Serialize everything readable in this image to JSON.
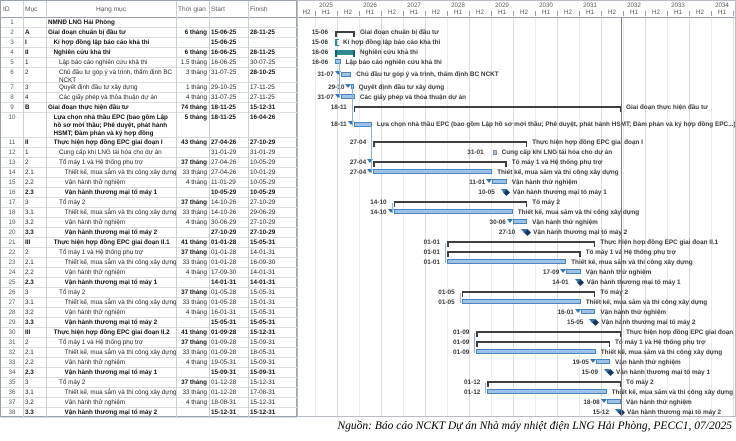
{
  "table": {
    "headers": {
      "id": "ID",
      "muc": "Mục",
      "hang_muc": "Hạng mục",
      "thoi_gian": "Thời gian",
      "start": "Start",
      "finish": "Finish"
    }
  },
  "footer": {
    "source": "Nguồn: Báo cáo NCKT Dự án Nhà máy nhiệt điện LNG Hải Phòng, PECC1, 07/2025"
  },
  "chart_data": {
    "type": "table",
    "subtype": "gantt",
    "timeline": {
      "leading_half_label": "H2",
      "years": [
        2025,
        2026,
        2027,
        2028,
        2029,
        2030,
        2031,
        2032,
        2033,
        2034
      ],
      "half1_label": "H1",
      "half2_label": "H2",
      "finish_line_date": "15-12-31"
    },
    "rows": [
      {
        "id": 1,
        "muc": "",
        "name": "NMNĐ LNG Hải Phòng",
        "level": 0,
        "bold": true,
        "dur": "",
        "start": "",
        "finish": ""
      },
      {
        "id": 2,
        "muc": "A",
        "name": "Giai đoạn chuẩn bị đầu tư",
        "level": 0,
        "bold": true,
        "dur": "6 tháng",
        "start": "15-06-25",
        "finish": "28-11-25",
        "bar": {
          "type": "summary",
          "from": "15-06-25",
          "to": "28-11-25",
          "d": "15-06",
          "label": "Giai đoạn chuẩn bị đầu tư"
        }
      },
      {
        "id": 3,
        "muc": "I",
        "name": "Kí hợp đồng lập báo cáo khả thi",
        "level": 1,
        "bold": true,
        "dur": "",
        "start": "15-06-25",
        "finish": "",
        "bar": {
          "type": "open",
          "from": "15-06-25",
          "d": "15-06",
          "label": "Kí hợp đồng lập báo cáo khả thi"
        }
      },
      {
        "id": 4,
        "muc": "II",
        "name": "Nghiên cứu khả thi",
        "level": 1,
        "bold": true,
        "dur": "6 tháng",
        "start": "16-06-25",
        "finish": "28-11-25",
        "bar": {
          "type": "teal",
          "from": "16-06-25",
          "to": "28-11-25",
          "d": "16-06",
          "label": "Nghiên cứu khả thi"
        }
      },
      {
        "id": 5,
        "muc": "1",
        "name": "Lập báo cáo nghiên cứu khả thi",
        "level": 2,
        "dur": "1.5 tháng",
        "start": "16-06-25",
        "finish": "30-07-25",
        "bar": {
          "type": "task",
          "from": "16-06-25",
          "to": "30-07-25",
          "d": "16-06",
          "label": "Lập báo cáo nghiên cứu khả thi"
        }
      },
      {
        "id": 6,
        "muc": "2",
        "name": "Chủ đầu tư góp ý và trình, thẩm định BC  NCKT",
        "level": 2,
        "lines": 2,
        "dur": "3 tháng",
        "start": "31-07-25",
        "finish": "28-10-25",
        "bold_cells": [
          "finish"
        ],
        "bar": {
          "type": "task",
          "link": true,
          "from": "31-07-25",
          "to": "28-10-25",
          "d": "31-07",
          "label": "Chủ đầu tư góp ý và trình, thẩm định BC  NCKT"
        }
      },
      {
        "id": 7,
        "muc": "3",
        "name": "Quyết định đầu tư xây dựng",
        "level": 2,
        "dur": "1 tháng",
        "start": "29-10-25",
        "finish": "17-11-25",
        "bar": {
          "type": "task",
          "link": true,
          "from": "29-10-25",
          "to": "17-11-25",
          "d": "29-10",
          "label": "Quyết định đầu tư xây dựng"
        }
      },
      {
        "id": 8,
        "muc": "4",
        "name": "Các giấy phép và thỏa thuận dự án",
        "level": 2,
        "dur": "4 tháng",
        "start": "31-07-25",
        "finish": "27-11-25",
        "bar": {
          "type": "task",
          "link": true,
          "from": "31-07-25",
          "to": "27-11-25",
          "d": "31-07",
          "label": "Các giấy phép và thỏa thuận dự án"
        }
      },
      {
        "id": 9,
        "muc": "B",
        "name": "Giai đoạn thực hiện đầu tư",
        "level": 0,
        "bold": true,
        "dur": "74 tháng",
        "start": "18-11-25",
        "finish": "15-12-31",
        "bar": {
          "type": "summary",
          "from": "18-11-25",
          "to": "15-12-31",
          "d": "18-11",
          "label": "Giai đoạn thực hiện đầu tư"
        }
      },
      {
        "id": 10,
        "muc": "",
        "name": "Lựa chọn nhà thầu EPC (bao gồm Lập hồ sơ mời thầu; Phê duyệt, phát hành HSMT; Đàm phán và ký hợp đồng",
        "level": 1,
        "lines": 3,
        "bold": true,
        "dur": "5 tháng",
        "start": "18-11-25",
        "finish": "16-04-26",
        "bar": {
          "type": "task",
          "link": true,
          "from": "18-11-25",
          "to": "16-04-26",
          "d": "18-11",
          "label": "Lựa chọn nhà thầu EPC (bao gồm Lập hồ sơ mời thầu; Phê duyệt, phát hành HSMT; Đàm phán và ký hợp đồng EPC...)"
        }
      },
      {
        "id": 11,
        "muc": "II",
        "name": "Thực hiện hợp đồng EPC giai đoạn I",
        "level": 1,
        "bold": true,
        "dur": "43 tháng",
        "start": "27-04-26",
        "finish": "27-10-29",
        "bar": {
          "type": "summary",
          "from": "27-04-26",
          "to": "27-10-29",
          "d": "27-04",
          "label": "Thực hiện hợp đồng EPC giai đoạn I"
        }
      },
      {
        "id": 12,
        "muc": "1",
        "name": "Cung cấp khí LNG tái hóa cho dự án",
        "level": 2,
        "dur": "",
        "start": "31-01-29",
        "finish": "31-01-29",
        "bar": {
          "type": "mini",
          "from": "31-01-29",
          "d": "31-01",
          "label": "Cung cấp khí LNG tái hóa cho dự án"
        }
      },
      {
        "id": 13,
        "muc": "2",
        "name": "Tổ máy 1 và Hệ thống phụ trợ",
        "level": 2,
        "dur": "37 tháng",
        "start": "27-04-26",
        "finish": "10-05-29",
        "bold_cells": [
          "dur"
        ],
        "bar": {
          "type": "summary",
          "link": true,
          "from": "27-04-26",
          "to": "10-05-29",
          "d": "27-04",
          "label": "Tổ máy 1 và Hệ thống phụ trợ"
        }
      },
      {
        "id": 14,
        "muc": "2.1",
        "name": "Thiết kế, mua sắm và thi công xây dựng",
        "level": 3,
        "dur": "33 tháng",
        "start": "27-04-26",
        "finish": "10-01-29",
        "bar": {
          "type": "task",
          "link": true,
          "from": "27-04-26",
          "to": "10-01-29",
          "d": "27-04",
          "label": "Thiết kế, mua sắm và thi công xây dựng"
        }
      },
      {
        "id": 15,
        "muc": "2.2",
        "name": "Vận hành thử nghiệm",
        "level": 3,
        "dur": "4 tháng",
        "start": "11-01-29",
        "finish": "10-05-29",
        "bar": {
          "type": "task",
          "link": true,
          "from": "11-01-29",
          "to": "10-05-29",
          "d": "11-01",
          "label": "Vận hành thử nghiệm"
        }
      },
      {
        "id": 16,
        "muc": "2.3",
        "name": "Vận hành thương mại tổ máy 1",
        "level": 3,
        "bold": true,
        "dur": "",
        "start": "10-05-29",
        "finish": "10-05-29",
        "bar": {
          "type": "milestone",
          "link": true,
          "from": "10-05-29",
          "d": "10-05",
          "label": "Vận hành thương mại tổ máy 1"
        }
      },
      {
        "id": 17,
        "muc": "3",
        "name": "Tổ máy 2",
        "level": 2,
        "dur": "37 tháng",
        "start": "14-10-26",
        "finish": "27-10-29",
        "bold_cells": [
          "dur"
        ],
        "bar": {
          "type": "summary",
          "from": "14-10-26",
          "to": "27-10-29",
          "d": "14-10",
          "label": "Tổ máy 2"
        }
      },
      {
        "id": 18,
        "muc": "3.1",
        "name": "Thiết kế, mua sắm và thi công xây dựng",
        "level": 3,
        "dur": "33 tháng",
        "start": "14-10-26",
        "finish": "29-06-29",
        "bar": {
          "type": "task",
          "link": true,
          "from": "14-10-26",
          "to": "29-06-29",
          "d": "14-10",
          "label": "Thiết kế, mua sắm và thi công xây dựng"
        }
      },
      {
        "id": 19,
        "muc": "3.2",
        "name": "Vận hành thử nghiệm",
        "level": 3,
        "dur": "4 tháng",
        "start": "30-06-29",
        "finish": "27-10-29",
        "bar": {
          "type": "task",
          "link": true,
          "from": "30-06-29",
          "to": "27-10-29",
          "d": "30-06",
          "label": "Vận hành thử nghiệm"
        }
      },
      {
        "id": 20,
        "muc": "3.3",
        "name": "Vận hành thương mại tổ máy 2",
        "level": 3,
        "bold": true,
        "dur": "",
        "start": "27-10-29",
        "finish": "27-10-29",
        "bar": {
          "type": "milestone",
          "link": true,
          "from": "27-10-29",
          "d": "27-10",
          "label": "Vận hành thương mại tổ máy 2"
        }
      },
      {
        "id": 21,
        "muc": "III",
        "name": "Thực hiện hợp đồng EPC giai đoạn II.1",
        "level": 1,
        "bold": true,
        "dur": "41 tháng",
        "start": "01-01-28",
        "finish": "15-05-31",
        "bar": {
          "type": "summary",
          "from": "01-01-28",
          "to": "15-05-31",
          "d": "01-01",
          "label": "Thực hiện hợp đồng EPC giai đoạn II.1"
        }
      },
      {
        "id": 22,
        "muc": "2",
        "name": "Tổ máy 1 và Hệ thống phụ trợ",
        "level": 2,
        "dur": "37 tháng",
        "start": "01-01-28",
        "finish": "14-01-31",
        "bold_cells": [
          "dur"
        ],
        "bar": {
          "type": "summary",
          "from": "01-01-28",
          "to": "14-01-31",
          "d": "01-01",
          "label": "Tổ máy 1 và Hệ thống phụ trợ"
        }
      },
      {
        "id": 23,
        "muc": "2.1",
        "name": "Thiết kế, mua sắm và thi công xây dựng",
        "level": 3,
        "dur": "33 tháng",
        "start": "01-01-28",
        "finish": "16-09-30",
        "bar": {
          "type": "task",
          "from": "01-01-28",
          "to": "16-09-30",
          "d": "01-01",
          "label": "Thiết kế, mua sắm và thi công xây dựng"
        }
      },
      {
        "id": 24,
        "muc": "2.2",
        "name": "Vận hành thử nghiệm",
        "level": 3,
        "dur": "4 tháng",
        "start": "17-09-30",
        "finish": "14-01-31",
        "bar": {
          "type": "task",
          "link": true,
          "from": "17-09-30",
          "to": "14-01-31",
          "d": "17-09",
          "label": "Vận hành thử nghiệm"
        }
      },
      {
        "id": 25,
        "muc": "2.3",
        "name": "Vận hành thương mại tổ máy 1",
        "level": 3,
        "bold": true,
        "dur": "",
        "start": "14-01-31",
        "finish": "14-01-31",
        "bar": {
          "type": "milestone",
          "link": true,
          "from": "14-01-31",
          "d": "14-01",
          "label": "Vận hành thương mại tổ máy 1"
        }
      },
      {
        "id": 26,
        "muc": "3",
        "name": "Tổ máy 2",
        "level": 2,
        "dur": "37 tháng",
        "start": "01-05-28",
        "finish": "15-05-31",
        "bold_cells": [
          "dur"
        ],
        "bar": {
          "type": "summary",
          "from": "01-05-28",
          "to": "15-05-31",
          "d": "01-05",
          "label": "Tổ máy 2"
        }
      },
      {
        "id": 27,
        "muc": "3.1",
        "name": "Thiết kế, mua sắm và thi công xây dựng",
        "level": 3,
        "dur": "33 tháng",
        "start": "01-05-28",
        "finish": "15-01-31",
        "bar": {
          "type": "task",
          "from": "01-05-28",
          "to": "15-01-31",
          "d": "01-05",
          "label": "Thiết kế, mua sắm và thi công xây dựng"
        }
      },
      {
        "id": 28,
        "muc": "3.2",
        "name": "Vận hành thử nghiệm",
        "level": 3,
        "dur": "4 tháng",
        "start": "16-01-31",
        "finish": "15-05-31",
        "bar": {
          "type": "task",
          "link": true,
          "from": "16-01-31",
          "to": "15-05-31",
          "d": "16-01",
          "label": "Vận hành thử nghiệm"
        }
      },
      {
        "id": 29,
        "muc": "3.3",
        "name": "Vận hành thương mại tổ máy 2",
        "level": 3,
        "bold": true,
        "dur": "",
        "start": "15-05-31",
        "finish": "15-05-31",
        "bar": {
          "type": "milestone",
          "link": true,
          "from": "15-05-31",
          "d": "15-05",
          "label": "Vận hành thương mại tổ máy 2"
        }
      },
      {
        "id": 30,
        "muc": "III",
        "name": "Thực hiện hợp đồng EPC giai đoạn II.2",
        "level": 1,
        "bold": true,
        "dur": "41 tháng",
        "start": "01-09-28",
        "finish": "15-12-31",
        "bar": {
          "type": "summary",
          "from": "01-09-28",
          "to": "15-12-31",
          "d": "01-09",
          "label": "Thực hiện hợp đồng EPC giai đoạn II.2"
        }
      },
      {
        "id": 31,
        "muc": "2",
        "name": "Tổ máy 1 và Hệ thống phụ trợ",
        "level": 2,
        "dur": "37 tháng",
        "start": "01-09-28",
        "finish": "15-09-31",
        "bold_cells": [
          "dur"
        ],
        "bar": {
          "type": "summary",
          "from": "01-09-28",
          "to": "15-09-31",
          "d": "01-09",
          "label": "Tổ máy 1 và Hệ thống phụ trợ"
        }
      },
      {
        "id": 32,
        "muc": "2.1",
        "name": "Thiết kế, mua sắm và thi công xây dựng",
        "level": 3,
        "dur": "33 tháng",
        "start": "01-09-28",
        "finish": "18-05-31",
        "bar": {
          "type": "task",
          "from": "01-09-28",
          "to": "18-05-31",
          "d": "01-09",
          "label": "Thiết kế, mua sắm và thi công xây dựng"
        }
      },
      {
        "id": 33,
        "muc": "2.2",
        "name": "Vận hành thử nghiệm",
        "level": 3,
        "dur": "4 tháng",
        "start": "19-05-31",
        "finish": "15-09-31",
        "bar": {
          "type": "task",
          "link": true,
          "from": "19-05-31",
          "to": "15-09-31",
          "d": "19-05",
          "label": "Vận hành thử nghiệm"
        }
      },
      {
        "id": 34,
        "muc": "2.3",
        "name": "Vận hành thương mại tổ máy 1",
        "level": 3,
        "bold": true,
        "dur": "",
        "start": "15-09-31",
        "finish": "15-09-31",
        "bar": {
          "type": "milestone",
          "link": true,
          "from": "15-09-31",
          "d": "15-09",
          "label": "Vận hành thương mại tổ máy 1"
        }
      },
      {
        "id": 35,
        "muc": "3",
        "name": "Tổ máy 2",
        "level": 2,
        "dur": "37 tháng",
        "start": "01-12-28",
        "finish": "15-12-31",
        "bold_cells": [
          "dur"
        ],
        "bar": {
          "type": "summary",
          "from": "01-12-28",
          "to": "15-12-31",
          "d": "01-12",
          "label": "Tổ máy 2"
        }
      },
      {
        "id": 36,
        "muc": "3.1",
        "name": "Thiết kế, mua sắm và thi công xây dựng",
        "level": 3,
        "dur": "33 tháng",
        "start": "01-12-28",
        "finish": "17-08-31",
        "bar": {
          "type": "task",
          "from": "01-12-28",
          "to": "17-08-31",
          "d": "01-12",
          "label": "Thiết kế, mua sắm và thi công xây dựng"
        }
      },
      {
        "id": 37,
        "muc": "3.2",
        "name": "Vận hành thử nghiệm",
        "level": 3,
        "dur": "4 tháng",
        "start": "18-08-31",
        "finish": "15-12-31",
        "bar": {
          "type": "task",
          "link": true,
          "from": "18-08-31",
          "to": "15-12-31",
          "d": "18-08",
          "label": "Vận hành thử nghiệm"
        }
      },
      {
        "id": 38,
        "muc": "3.3",
        "name": "Vận hành thương mại tổ máy 2",
        "level": 3,
        "bold": true,
        "dur": "",
        "start": "15-12-31",
        "finish": "15-12-31",
        "bar": {
          "type": "milestone",
          "link": true,
          "from": "15-12-31",
          "d": "15-12",
          "label": "Vận hành thương mại tổ máy 2"
        }
      }
    ]
  }
}
